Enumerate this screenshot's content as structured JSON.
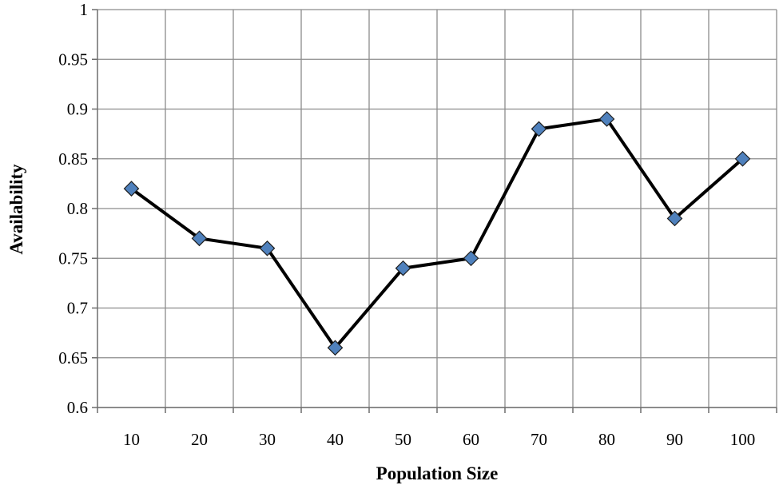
{
  "chart_data": {
    "type": "line",
    "xlabel": "Population Size",
    "ylabel": "Availability",
    "categories": [
      "10",
      "20",
      "30",
      "40",
      "50",
      "60",
      "70",
      "80",
      "90",
      "100"
    ],
    "y_ticks": [
      "0.6",
      "0.65",
      "0.7",
      "0.75",
      "0.8",
      "0.85",
      "0.9",
      "0.95",
      "1"
    ],
    "ylim": [
      0.6,
      1.0
    ],
    "grid": true,
    "series": [
      {
        "values": [
          0.82,
          0.77,
          0.76,
          0.66,
          0.74,
          0.75,
          0.88,
          0.89,
          0.79,
          0.85
        ],
        "line_color": "#000000",
        "marker_color": "#4f81bd",
        "marker": "diamond"
      }
    ]
  }
}
